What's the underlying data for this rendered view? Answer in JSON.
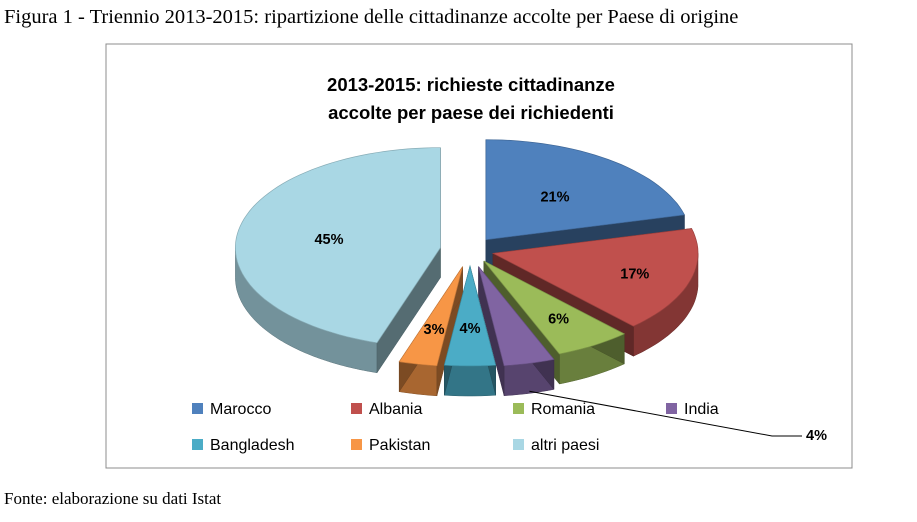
{
  "figure_caption": "Figura 1 - Triennio 2013-2015: ripartizione delle cittadinanze accolte per Paese di origine",
  "source_note": "Fonte: elaborazione su dati Istat",
  "chart_data": {
    "type": "pie",
    "style": "3d-exploded",
    "title_lines": [
      "2013-2015: richieste cittadinanze",
      "accolte per paese dei richiedenti"
    ],
    "categories": [
      "Marocco",
      "Albania",
      "Romania",
      "India",
      "Bangladesh",
      "Pakistan",
      "altri paesi"
    ],
    "values": [
      21,
      17,
      6,
      4,
      4,
      3,
      45
    ],
    "labels": [
      "21%",
      "17%",
      "6%",
      "4%",
      "4%",
      "3%",
      "45%"
    ],
    "unit": "%",
    "colors": [
      "#4F81BD",
      "#C0504D",
      "#9BBB59",
      "#8064A2",
      "#4BACC6",
      "#F79646",
      "#A9D7E4"
    ],
    "legend_position": "bottom"
  }
}
